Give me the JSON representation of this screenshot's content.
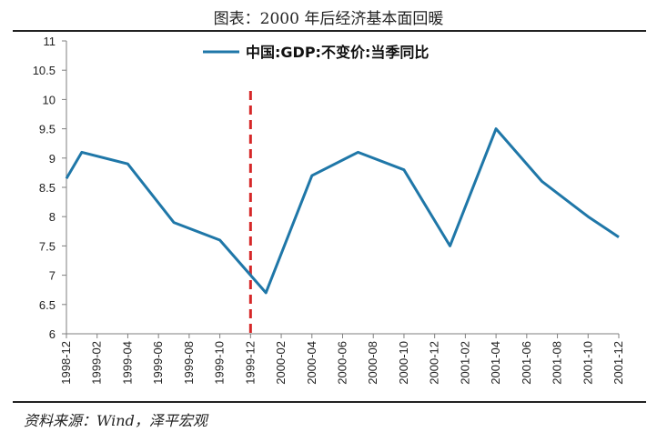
{
  "title": "图表：2000 年后经济基本面回暖",
  "source": "资料来源：Wind，泽平宏观",
  "colors": {
    "series": "#1f77a8",
    "marker": "#d62728",
    "axis": "#7f7f7f"
  },
  "chart_data": {
    "type": "line",
    "title": "",
    "xlabel": "",
    "ylabel": "",
    "ylim": [
      6,
      11
    ],
    "yticks": [
      "6",
      "6.5",
      "7",
      "7.5",
      "8",
      "8.5",
      "9",
      "9.5",
      "10",
      "10.5",
      "11"
    ],
    "xticks": [
      "1998-12",
      "1999-02",
      "1999-04",
      "1999-06",
      "1999-08",
      "1999-10",
      "1999-12",
      "2000-02",
      "2000-04",
      "2000-06",
      "2000-08",
      "2000-10",
      "2000-12",
      "2001-02",
      "2001-04",
      "2001-06",
      "2001-08",
      "2001-10",
      "2001-12"
    ],
    "legend_position": "top-center",
    "grid": false,
    "series": [
      {
        "name": "中国:GDP:不变价:当季同比",
        "x": [
          "1998-12",
          "1999-01",
          "1999-04",
          "1999-07",
          "1999-10",
          "2000-01",
          "2000-04",
          "2000-07",
          "2000-10",
          "2001-01",
          "2001-04",
          "2001-07",
          "2001-10",
          "2001-12"
        ],
        "y": [
          8.65,
          9.1,
          8.9,
          7.9,
          7.6,
          6.7,
          8.7,
          9.1,
          8.8,
          7.5,
          9.5,
          8.6,
          8.0,
          7.65
        ]
      }
    ],
    "reference_line": {
      "x": "1999-12",
      "style": "dashed"
    }
  }
}
